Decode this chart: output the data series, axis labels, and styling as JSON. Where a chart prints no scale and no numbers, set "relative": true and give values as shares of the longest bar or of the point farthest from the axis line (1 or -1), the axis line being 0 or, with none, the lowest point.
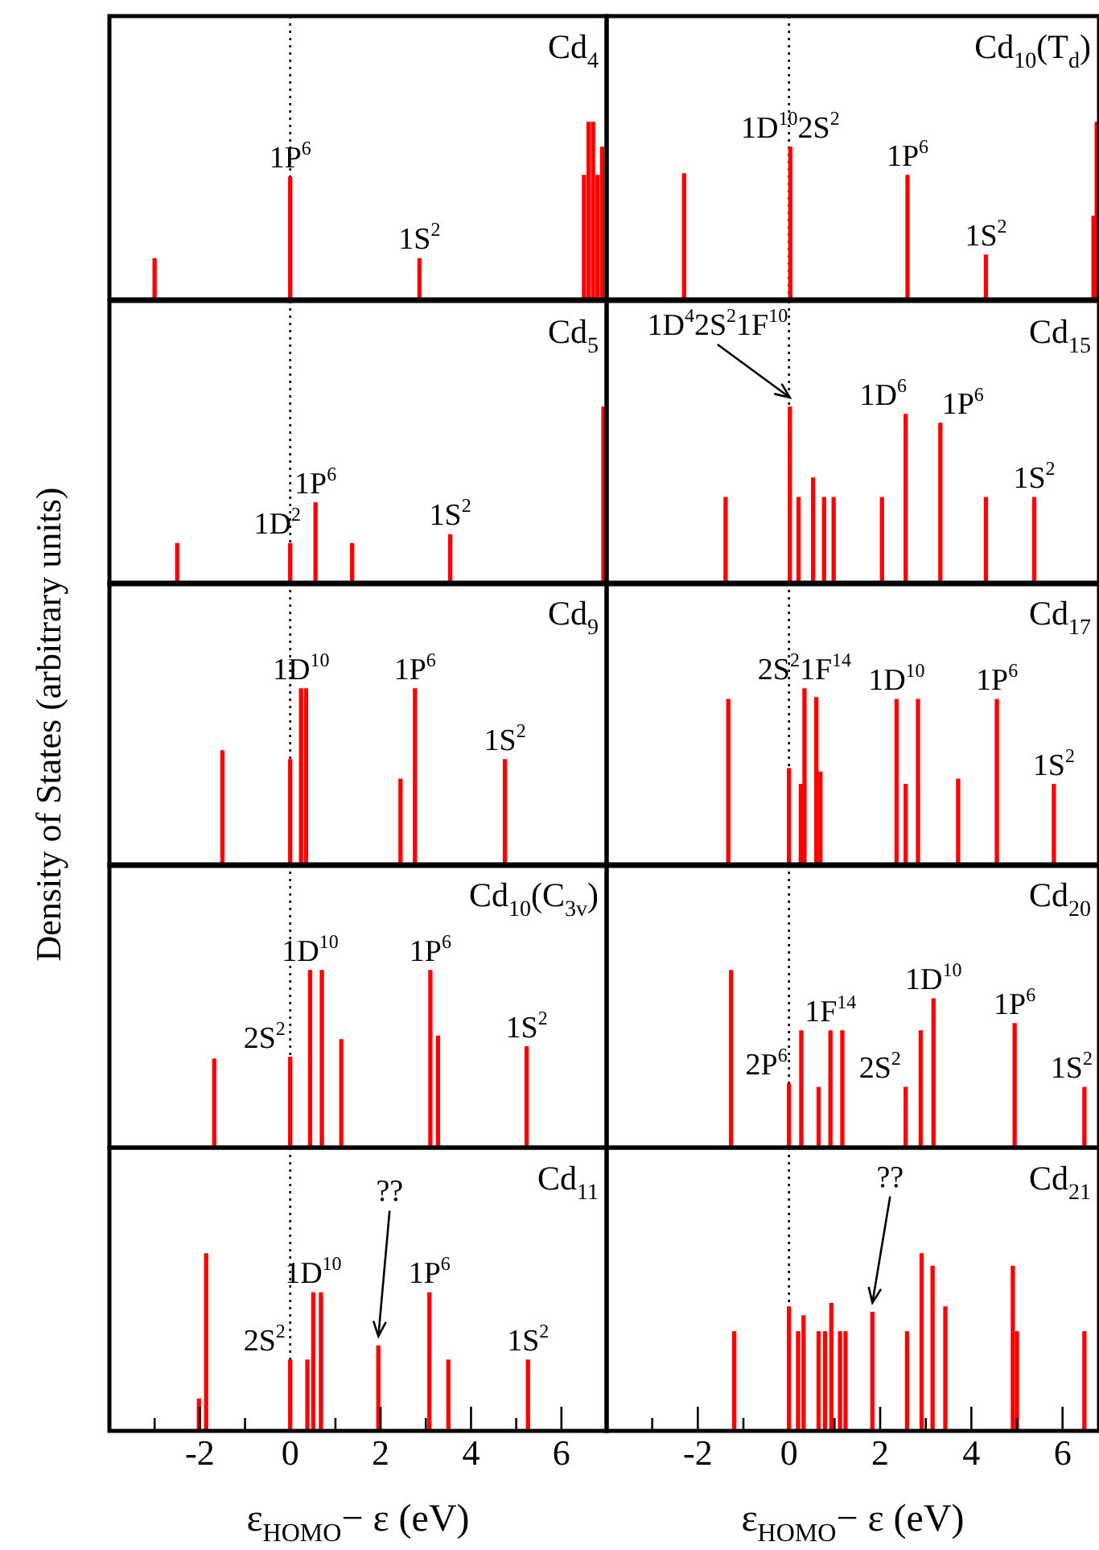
{
  "chart_data": [
    {
      "type": "bar",
      "title": "Cd$_{4}$",
      "relative": true,
      "xlim": [
        -4,
        7
      ],
      "tick_labels": false,
      "ref_lines": [
        {
          "axis": "x",
          "value": 0,
          "color": "#000000",
          "line_style": "dotted"
        }
      ],
      "annotations": [
        {
          "text": "1P$^{6}$",
          "x": 0,
          "y": 0.69
        },
        {
          "text": "1S$^{2}$",
          "x": 2.86,
          "y": 0.23
        }
      ],
      "series": [
        {
          "color": "#ff0000",
          "x": [
            -3.0,
            0.0,
            2.86,
            6.5,
            6.6,
            6.7,
            6.8,
            6.9
          ],
          "values": [
            0.23,
            0.69,
            0.23,
            0.7,
            1,
            1,
            0.7,
            0.86
          ]
        }
      ]
    },
    {
      "type": "bar",
      "title": "Cd$_{10}$(T$_{d}$)",
      "relative": true,
      "xlim": [
        -4,
        6.8
      ],
      "tick_labels": false,
      "ref_lines": [
        {
          "axis": "x",
          "value": 0,
          "color": "#000000",
          "line_style": "dotted"
        }
      ],
      "annotations": [
        {
          "text": "1D$^{10}$2S$^{2}$",
          "x": 0.03,
          "y": 0.86
        },
        {
          "text": "1P$^{6}$",
          "x": 2.6,
          "y": 0.7
        },
        {
          "text": "1S$^{2}$",
          "x": 4.32,
          "y": 0.25
        }
      ],
      "series": [
        {
          "color": "#ff0000",
          "x": [
            -2.3,
            0.03,
            2.6,
            4.32,
            6.68,
            6.75
          ],
          "values": [
            0.71,
            0.86,
            0.7,
            0.25,
            0.47,
            1
          ]
        }
      ]
    },
    {
      "type": "bar",
      "title": "Cd$_{5}$",
      "relative": true,
      "xlim": [
        -4,
        7
      ],
      "tick_labels": false,
      "ref_lines": [
        {
          "axis": "x",
          "value": 0,
          "color": "#000000",
          "line_style": "dotted"
        }
      ],
      "annotations": [
        {
          "text": "1D$^{2}$",
          "x": 0,
          "y": 0.23
        },
        {
          "text": "1P$^{6}$",
          "x": 0.56,
          "y": 0.46
        },
        {
          "text": "1S$^{2}$",
          "x": 3.54,
          "y": 0.28
        }
      ],
      "series": [
        {
          "color": "#ff0000",
          "x": [
            -2.5,
            0.0,
            0.56,
            1.37,
            3.54,
            6.93
          ],
          "values": [
            0.23,
            0.23,
            0.46,
            0.23,
            0.28,
            1
          ]
        }
      ]
    },
    {
      "type": "bar",
      "title": "Cd$_{15}$",
      "relative": true,
      "xlim": [
        -4,
        6.8
      ],
      "tick_labels": false,
      "ref_lines": [
        {
          "axis": "x",
          "value": 0,
          "color": "#000000",
          "line_style": "dotted"
        }
      ],
      "annotations": [
        {
          "text": "1D$^{4}$2S$^{2}$1F$^{10}$",
          "x": 0.02,
          "y": 1
        },
        {
          "text": "1D$^{6}$",
          "x": 2.56,
          "y": 0.96
        },
        {
          "text": "1P$^{6}$",
          "x": 3.32,
          "y": 0.91
        },
        {
          "text": "1S$^{2}$",
          "x": 5.38,
          "y": 0.49
        }
      ],
      "series": [
        {
          "color": "#ff0000",
          "x": [
            -1.39,
            0.02,
            0.21,
            0.53,
            0.77,
            0.98,
            2.04,
            2.56,
            3.32,
            4.32,
            5.38
          ],
          "values": [
            0.49,
            1,
            0.49,
            0.6,
            0.49,
            0.49,
            0.49,
            0.96,
            0.91,
            0.49,
            0.49
          ]
        }
      ]
    },
    {
      "type": "bar",
      "title": "Cd$_{9}$",
      "ylabel": "Density of States (arbitrary units)",
      "relative": true,
      "xlim": [
        -4,
        7
      ],
      "tick_labels": false,
      "ref_lines": [
        {
          "axis": "x",
          "value": 0,
          "color": "#000000",
          "line_style": "dotted"
        }
      ],
      "annotations": [
        {
          "text": "1D$^{10}$",
          "x": 0.24,
          "y": 1
        },
        {
          "text": "1P$^{6}$",
          "x": 2.76,
          "y": 1
        },
        {
          "text": "1S$^{2}$",
          "x": 4.75,
          "y": 0.6
        }
      ],
      "series": [
        {
          "color": "#ff0000",
          "x": [
            -1.5,
            0.0,
            0.24,
            0.35,
            2.44,
            2.76,
            4.75
          ],
          "values": [
            0.65,
            0.6,
            1,
            1,
            0.49,
            1,
            0.6
          ]
        }
      ]
    },
    {
      "type": "bar",
      "title": "Cd$_{17}$",
      "relative": true,
      "xlim": [
        -4,
        6.8
      ],
      "tick_labels": false,
      "ref_lines": [
        {
          "axis": "x",
          "value": 0,
          "color": "#000000",
          "line_style": "dotted"
        }
      ],
      "annotations": [
        {
          "text": "2S$^{2}$1F$^{14}$",
          "x": 0.34,
          "y": 1
        },
        {
          "text": "1D$^{10}$",
          "x": 2.36,
          "y": 0.94
        },
        {
          "text": "1P$^{6}$",
          "x": 4.56,
          "y": 0.94
        },
        {
          "text": "1S$^{2}$",
          "x": 5.81,
          "y": 0.46
        }
      ],
      "series": [
        {
          "color": "#ff0000",
          "x": [
            -1.33,
            0.0,
            0.26,
            0.34,
            0.6,
            0.69,
            2.36,
            2.56,
            2.83,
            3.71,
            4.56,
            5.81
          ],
          "values": [
            0.94,
            0.55,
            0.46,
            1,
            0.95,
            0.53,
            0.94,
            0.46,
            0.94,
            0.49,
            0.94,
            0.46
          ]
        }
      ]
    },
    {
      "type": "bar",
      "title": "Cd$_{10}$(C$_{3v}$)",
      "relative": true,
      "xlim": [
        -4,
        7
      ],
      "tick_labels": false,
      "ref_lines": [
        {
          "axis": "x",
          "value": 0,
          "color": "#000000",
          "line_style": "dotted"
        }
      ],
      "annotations": [
        {
          "text": "2S$^{2}$",
          "x": 0,
          "y": 0.51
        },
        {
          "text": "1D$^{10}$",
          "x": 0.44,
          "y": 1
        },
        {
          "text": "1P$^{6}$",
          "x": 3.1,
          "y": 1
        },
        {
          "text": "1S$^{2}$",
          "x": 5.23,
          "y": 0.57
        }
      ],
      "series": [
        {
          "color": "#ff0000",
          "x": [
            -1.68,
            0.0,
            0.44,
            0.7,
            1.13,
            3.1,
            3.27,
            5.23
          ],
          "values": [
            0.5,
            0.51,
            1,
            1,
            0.61,
            1,
            0.63,
            0.57
          ]
        }
      ]
    },
    {
      "type": "bar",
      "title": "Cd$_{20}$",
      "relative": true,
      "xlim": [
        -4,
        6.8
      ],
      "tick_labels": false,
      "ref_lines": [
        {
          "axis": "x",
          "value": 0,
          "color": "#000000",
          "line_style": "dotted"
        }
      ],
      "annotations": [
        {
          "text": "2P$^{6}$",
          "x": 0,
          "y": 0.36
        },
        {
          "text": "1F$^{14}$",
          "x": 0.91,
          "y": 0.66
        },
        {
          "text": "2S$^{2}$",
          "x": 2.56,
          "y": 0.34
        },
        {
          "text": "1D$^{10}$",
          "x": 3.17,
          "y": 0.84
        },
        {
          "text": "1P$^{6}$",
          "x": 4.95,
          "y": 0.7
        },
        {
          "text": "1S$^{2}$",
          "x": 6.48,
          "y": 0.34
        }
      ],
      "series": [
        {
          "color": "#ff0000",
          "x": [
            -1.27,
            0.0,
            0.27,
            0.65,
            0.91,
            1.17,
            2.56,
            2.89,
            3.17,
            4.95,
            6.48
          ],
          "values": [
            1,
            0.36,
            0.66,
            0.34,
            0.66,
            0.66,
            0.34,
            0.66,
            0.84,
            0.7,
            0.34
          ]
        }
      ]
    },
    {
      "type": "bar",
      "title": "Cd$_{11}$",
      "xlabel": "ε$_{HOMO}$− ε (eV)",
      "relative": true,
      "xlim": [
        -4,
        7
      ],
      "tick_labels": "x",
      "xticks": [
        {
          "value": -3,
          "label": null
        },
        -2,
        {
          "value": -1,
          "label": null
        },
        0,
        {
          "value": 1,
          "label": null
        },
        2,
        {
          "value": 3,
          "label": null
        },
        4,
        {
          "value": 5,
          "label": null
        },
        6
      ],
      "ref_lines": [
        {
          "axis": "x",
          "value": 0,
          "color": "#000000",
          "line_style": "dotted"
        }
      ],
      "annotations": [
        {
          "text": "2S$^{2}$",
          "x": 0,
          "y": 0.4
        },
        {
          "text": "1D$^{10}$",
          "x": 0.51,
          "y": 0.78
        },
        {
          "text": "??",
          "x": 1.95,
          "y": 0.48
        },
        {
          "text": "1P$^{6}$",
          "x": 3.08,
          "y": 0.78
        },
        {
          "text": "1S$^{2}$",
          "x": 5.26,
          "y": 0.4
        }
      ],
      "series": [
        {
          "color": "#ff0000",
          "x": [
            -2.02,
            -1.86,
            0.0,
            0.38,
            0.51,
            0.68,
            1.95,
            3.08,
            3.5,
            5.26
          ],
          "values": [
            0.18,
            1,
            0.4,
            0.4,
            0.78,
            0.78,
            0.48,
            0.78,
            0.4,
            0.4
          ]
        }
      ]
    },
    {
      "type": "bar",
      "title": "Cd$_{21}$",
      "xlabel": "ε$_{HOMO}$− ε (eV)",
      "relative": true,
      "xlim": [
        -4,
        6.8
      ],
      "tick_labels": "x",
      "xticks": [
        {
          "value": -3,
          "label": null
        },
        -2,
        {
          "value": -1,
          "label": null
        },
        0,
        {
          "value": 1,
          "label": null
        },
        2,
        {
          "value": 3,
          "label": null
        },
        4,
        {
          "value": 5,
          "label": null
        },
        6
      ],
      "ref_lines": [
        {
          "axis": "x",
          "value": 0,
          "color": "#000000",
          "line_style": "dotted"
        }
      ],
      "annotations": [
        {
          "text": "??",
          "x": 1.83,
          "y": 0.67
        }
      ],
      "series": [
        {
          "color": "#ff0000",
          "x": [
            -1.2,
            0.0,
            0.2,
            0.32,
            0.65,
            0.79,
            0.93,
            1.12,
            1.24,
            1.83,
            2.59,
            2.91,
            3.15,
            3.43,
            4.91,
            5.0,
            6.48
          ],
          "values": [
            0.56,
            0.7,
            0.56,
            0.65,
            0.56,
            0.56,
            0.72,
            0.56,
            0.56,
            0.67,
            0.56,
            1,
            0.93,
            0.7,
            0.93,
            0.56,
            0.56
          ]
        }
      ]
    }
  ]
}
